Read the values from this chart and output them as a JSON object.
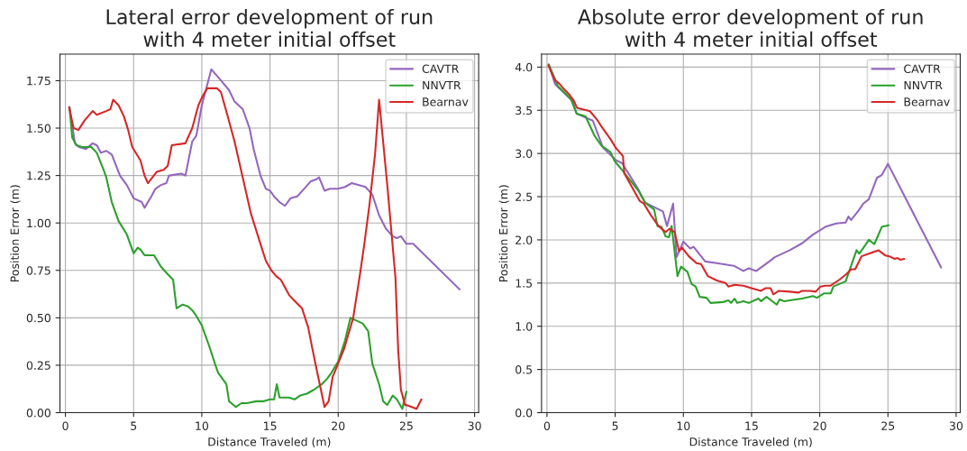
{
  "chart_data": [
    {
      "type": "line",
      "title": "Lateral error development of run\nwith 4 meter initial offset",
      "xlabel": "Distance Traveled (m)",
      "ylabel": "Position Error (m)",
      "xlim": [
        -0.4,
        30.3
      ],
      "ylim": [
        0,
        1.89
      ],
      "xticks": [
        0,
        5,
        10,
        15,
        20,
        25,
        30
      ],
      "yticks": [
        {
          "value": 0,
          "label": "0.00"
        },
        {
          "value": 0.25,
          "label": "0.25"
        },
        {
          "value": 0.5,
          "label": "0.50"
        },
        {
          "value": 0.75,
          "label": "0.75"
        },
        {
          "value": 1.0,
          "label": "1.00"
        },
        {
          "value": 1.25,
          "label": "1.25"
        },
        {
          "value": 1.5,
          "label": "1.50"
        },
        {
          "value": 1.75,
          "label": "1.75"
        }
      ],
      "grid": true,
      "legend": "top right",
      "line_style": "solid",
      "marker": "none",
      "series": [
        {
          "name": "CAVTR",
          "color": "#9467bd",
          "x": [
            0.3,
            0.7,
            1.0,
            1.5,
            2.0,
            2.3,
            2.6,
            3.0,
            3.4,
            4.0,
            4.5,
            5.0,
            5.6,
            5.8,
            6.3,
            6.6,
            7.0,
            7.4,
            7.6,
            8.5,
            8.8,
            9.3,
            9.6,
            10.0,
            10.7,
            11.3,
            12.0,
            12.4,
            13.0,
            13.5,
            13.8,
            14.3,
            14.7,
            15.0,
            15.3,
            15.7,
            16.1,
            16.5,
            17.0,
            17.5,
            18.0,
            18.4,
            18.6,
            19.0,
            19.4,
            20.0,
            20.5,
            21.0,
            22.0,
            22.5,
            23.0,
            23.5,
            24.0,
            24.3,
            24.6,
            25.0,
            25.5,
            28.9
          ],
          "values": [
            1.61,
            1.42,
            1.4,
            1.39,
            1.42,
            1.41,
            1.37,
            1.38,
            1.36,
            1.25,
            1.2,
            1.13,
            1.11,
            1.08,
            1.14,
            1.18,
            1.2,
            1.21,
            1.25,
            1.26,
            1.25,
            1.43,
            1.46,
            1.62,
            1.81,
            1.76,
            1.7,
            1.64,
            1.6,
            1.5,
            1.39,
            1.25,
            1.18,
            1.17,
            1.14,
            1.11,
            1.09,
            1.13,
            1.14,
            1.18,
            1.22,
            1.23,
            1.24,
            1.17,
            1.18,
            1.18,
            1.19,
            1.21,
            1.19,
            1.15,
            1.04,
            0.97,
            0.93,
            0.92,
            0.93,
            0.89,
            0.89,
            0.65
          ]
        },
        {
          "name": "NNVTR",
          "color": "#2ca02c",
          "x": [
            0.3,
            0.5,
            0.8,
            1.2,
            1.9,
            2.3,
            2.8,
            3.0,
            3.4,
            3.9,
            4.5,
            5.0,
            5.3,
            5.5,
            5.8,
            6.5,
            7.0,
            7.5,
            7.9,
            8.15,
            8.6,
            9.0,
            9.3,
            9.6,
            10.0,
            10.5,
            11.0,
            11.2,
            11.8,
            12.0,
            12.5,
            12.9,
            13.3,
            14.0,
            14.5,
            15.0,
            15.3,
            15.5,
            15.7,
            16.0,
            16.4,
            16.8,
            17.2,
            17.7,
            18.2,
            18.8,
            19.2,
            19.5,
            20.0,
            20.5,
            20.9,
            21.8,
            22.2,
            22.5,
            23.0,
            23.3,
            23.6,
            24.0,
            24.3,
            24.7,
            25.0
          ],
          "values": [
            1.61,
            1.45,
            1.41,
            1.4,
            1.4,
            1.37,
            1.28,
            1.24,
            1.11,
            1.01,
            0.94,
            0.84,
            0.87,
            0.86,
            0.83,
            0.83,
            0.77,
            0.73,
            0.7,
            0.55,
            0.57,
            0.56,
            0.54,
            0.51,
            0.46,
            0.36,
            0.25,
            0.21,
            0.15,
            0.06,
            0.03,
            0.05,
            0.05,
            0.06,
            0.06,
            0.07,
            0.07,
            0.15,
            0.08,
            0.08,
            0.08,
            0.07,
            0.09,
            0.1,
            0.12,
            0.15,
            0.18,
            0.21,
            0.27,
            0.38,
            0.5,
            0.47,
            0.43,
            0.26,
            0.15,
            0.06,
            0.04,
            0.09,
            0.07,
            0.02,
            0.11
          ]
        },
        {
          "name": "Bearnav",
          "color": "#d62728",
          "x": [
            0.27,
            0.6,
            0.95,
            1.4,
            2.0,
            2.3,
            3.0,
            3.3,
            3.5,
            3.9,
            4.3,
            4.6,
            4.9,
            5.5,
            5.8,
            6.05,
            6.7,
            7.2,
            7.5,
            7.8,
            8.8,
            9.3,
            9.75,
            10.0,
            10.4,
            11.1,
            11.4,
            11.87,
            12.4,
            13.0,
            13.6,
            14.3,
            14.7,
            15.1,
            15.45,
            15.8,
            16.4,
            16.8,
            17.35,
            17.8,
            18.1,
            18.5,
            19.0,
            19.3,
            19.6,
            20.0,
            20.45,
            21.1,
            21.6,
            21.9,
            22.3,
            22.7,
            23.0,
            23.6,
            24.2,
            24.4,
            24.6,
            24.9,
            25.0,
            25.75,
            26.1
          ],
          "values": [
            1.61,
            1.5,
            1.49,
            1.54,
            1.59,
            1.57,
            1.59,
            1.6,
            1.65,
            1.62,
            1.56,
            1.49,
            1.4,
            1.33,
            1.25,
            1.21,
            1.27,
            1.28,
            1.3,
            1.41,
            1.42,
            1.5,
            1.62,
            1.66,
            1.71,
            1.71,
            1.69,
            1.57,
            1.43,
            1.24,
            1.05,
            0.89,
            0.8,
            0.75,
            0.72,
            0.7,
            0.62,
            0.59,
            0.55,
            0.45,
            0.34,
            0.2,
            0.03,
            0.06,
            0.19,
            0.26,
            0.34,
            0.5,
            0.73,
            0.88,
            1.1,
            1.36,
            1.65,
            1.2,
            0.71,
            0.33,
            0.12,
            0.04,
            0.04,
            0.02,
            0.07
          ]
        }
      ]
    },
    {
      "type": "line",
      "title": "Absolute error development of run\nwith 4 meter initial offset",
      "xlabel": "Distance Traveled (m)",
      "ylabel": "Position Error (m)",
      "xlim": [
        -0.4,
        30.3
      ],
      "ylim": [
        0,
        4.15
      ],
      "xticks": [
        0,
        5,
        10,
        15,
        20,
        25,
        30
      ],
      "yticks": [
        {
          "value": 0,
          "label": "0.0"
        },
        {
          "value": 0.5,
          "label": "0.5"
        },
        {
          "value": 1.0,
          "label": "1.0"
        },
        {
          "value": 1.5,
          "label": "1.5"
        },
        {
          "value": 2.0,
          "label": "2.0"
        },
        {
          "value": 2.5,
          "label": "2.5"
        },
        {
          "value": 3.0,
          "label": "3.0"
        },
        {
          "value": 3.5,
          "label": "3.5"
        },
        {
          "value": 4.0,
          "label": "4.0"
        }
      ],
      "grid": true,
      "legend": "top right",
      "line_style": "solid",
      "marker": "none",
      "series": [
        {
          "name": "CAVTR",
          "color": "#9467bd",
          "x": [
            0.13,
            0.6,
            1.86,
            2.18,
            3.36,
            4.1,
            5.07,
            5.5,
            6.68,
            7.2,
            8.5,
            8.8,
            9.25,
            9.5,
            10.0,
            10.5,
            10.75,
            11.6,
            12.46,
            13.7,
            14.4,
            14.8,
            15.35,
            16.3,
            16.7,
            17.8,
            18.7,
            19.5,
            20.4,
            21.2,
            21.9,
            22.1,
            22.3,
            22.85,
            23.2,
            23.6,
            24.2,
            24.55,
            25.0,
            28.9
          ],
          "values": [
            4.03,
            3.8,
            3.61,
            3.46,
            3.38,
            3.07,
            2.92,
            2.89,
            2.59,
            2.43,
            2.33,
            2.16,
            2.42,
            1.8,
            1.98,
            1.9,
            1.92,
            1.75,
            1.73,
            1.7,
            1.64,
            1.67,
            1.64,
            1.75,
            1.8,
            1.88,
            1.96,
            2.06,
            2.15,
            2.19,
            2.2,
            2.27,
            2.23,
            2.34,
            2.42,
            2.47,
            2.72,
            2.75,
            2.88,
            1.68
          ]
        },
        {
          "name": "NNVTR",
          "color": "#2ca02c",
          "x": [
            0.13,
            0.8,
            1.75,
            2.18,
            2.83,
            3.47,
            4.0,
            4.64,
            4.97,
            5.5,
            6.7,
            7.2,
            7.86,
            8.1,
            8.4,
            8.7,
            8.95,
            9.14,
            9.57,
            9.83,
            10.3,
            10.6,
            10.9,
            11.2,
            11.7,
            12.0,
            12.9,
            13.3,
            13.5,
            13.75,
            13.95,
            14.4,
            14.8,
            15.5,
            15.7,
            16.1,
            16.85,
            17.06,
            17.4,
            17.8,
            18.7,
            19.5,
            19.8,
            20.3,
            20.8,
            21.0,
            21.9,
            22.7,
            22.9,
            23.3,
            23.6,
            24.0,
            24.55,
            25.05
          ],
          "values": [
            4.03,
            3.78,
            3.63,
            3.46,
            3.43,
            3.21,
            3.09,
            3.02,
            2.91,
            2.81,
            2.57,
            2.43,
            2.35,
            2.16,
            2.15,
            2.04,
            2.03,
            2.16,
            1.58,
            1.69,
            1.63,
            1.49,
            1.46,
            1.34,
            1.33,
            1.27,
            1.28,
            1.3,
            1.27,
            1.32,
            1.27,
            1.29,
            1.27,
            1.32,
            1.29,
            1.34,
            1.25,
            1.31,
            1.29,
            1.3,
            1.32,
            1.35,
            1.33,
            1.38,
            1.38,
            1.46,
            1.52,
            1.88,
            1.84,
            1.93,
            2.0,
            1.95,
            2.15,
            2.17
          ]
        },
        {
          "name": "Bearnav",
          "color": "#d62728",
          "x": [
            0.1,
            0.58,
            0.9,
            1.22,
            1.65,
            1.97,
            2.2,
            3.15,
            3.68,
            4.0,
            4.64,
            5.07,
            5.57,
            5.67,
            6.8,
            7.1,
            7.64,
            8.18,
            8.7,
            9.0,
            9.36,
            9.68,
            9.9,
            10.4,
            10.96,
            11.3,
            11.8,
            12.46,
            13.1,
            13.3,
            13.75,
            14.4,
            15.0,
            15.7,
            16.0,
            16.4,
            16.6,
            17.0,
            17.8,
            18.45,
            18.7,
            19.3,
            19.7,
            20.06,
            20.4,
            20.8,
            21.45,
            22.0,
            22.3,
            22.6,
            23.06,
            23.6,
            24.3,
            24.8,
            25.1,
            25.5,
            25.7,
            25.9,
            26.2
          ],
          "values": [
            4.02,
            3.85,
            3.81,
            3.75,
            3.68,
            3.61,
            3.53,
            3.49,
            3.39,
            3.31,
            3.17,
            3.06,
            2.97,
            2.77,
            2.45,
            2.42,
            2.28,
            2.16,
            2.09,
            2.13,
            2.09,
            1.87,
            1.91,
            1.81,
            1.73,
            1.72,
            1.58,
            1.53,
            1.5,
            1.46,
            1.48,
            1.47,
            1.44,
            1.41,
            1.44,
            1.44,
            1.37,
            1.41,
            1.4,
            1.39,
            1.41,
            1.41,
            1.4,
            1.46,
            1.47,
            1.47,
            1.54,
            1.61,
            1.66,
            1.66,
            1.81,
            1.84,
            1.88,
            1.82,
            1.81,
            1.78,
            1.79,
            1.77,
            1.78
          ]
        }
      ]
    }
  ]
}
